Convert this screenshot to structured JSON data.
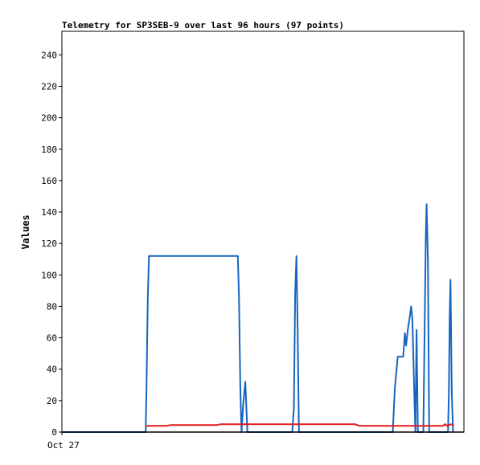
{
  "chart_data": {
    "type": "line",
    "title": "Telemetry for SP3SEB-9 over last 96 hours (97 points)",
    "ylabel": "Values",
    "xlabel": "",
    "ylim": [
      0,
      255
    ],
    "y_ticks": [
      0,
      20,
      40,
      60,
      80,
      100,
      120,
      140,
      160,
      180,
      200,
      220,
      240
    ],
    "x_range_hours": [
      0,
      96
    ],
    "x_tick_labels": [
      {
        "hour": 0,
        "label": "Oct 27"
      }
    ],
    "grid": false,
    "legend": "none",
    "series": [
      {
        "color": "#1565c0",
        "points": [
          [
            0,
            0
          ],
          [
            20,
            0
          ],
          [
            20.2,
            28
          ],
          [
            20.5,
            85
          ],
          [
            20.8,
            112
          ],
          [
            42,
            112
          ],
          [
            42.3,
            85
          ],
          [
            42.6,
            28
          ],
          [
            42.9,
            0
          ],
          [
            43.3,
            18
          ],
          [
            43.8,
            32
          ],
          [
            44.3,
            0
          ],
          [
            55,
            0
          ],
          [
            55.4,
            15
          ],
          [
            55.7,
            88
          ],
          [
            56,
            112
          ],
          [
            56.3,
            65
          ],
          [
            56.6,
            0
          ],
          [
            79,
            0
          ],
          [
            79.5,
            28
          ],
          [
            80.2,
            48
          ],
          [
            81.5,
            48
          ],
          [
            81.9,
            63
          ],
          [
            82.2,
            55
          ],
          [
            82.6,
            65
          ],
          [
            83,
            72
          ],
          [
            83.4,
            80
          ],
          [
            83.7,
            72
          ],
          [
            84.1,
            30
          ],
          [
            84.4,
            0
          ],
          [
            84.7,
            65
          ],
          [
            85,
            0
          ],
          [
            86.3,
            0
          ],
          [
            86.6,
            60
          ],
          [
            86.9,
            125
          ],
          [
            87.1,
            145
          ],
          [
            87.4,
            110
          ],
          [
            87.7,
            0
          ],
          [
            92.2,
            0
          ],
          [
            92.4,
            25
          ],
          [
            92.6,
            73
          ],
          [
            92.8,
            97
          ],
          [
            93.1,
            25
          ],
          [
            93.4,
            0
          ]
        ]
      },
      {
        "color": "#e41a1c",
        "points": [
          [
            20,
            4
          ],
          [
            25,
            4
          ],
          [
            26,
            4.5
          ],
          [
            37,
            4.5
          ],
          [
            38,
            5
          ],
          [
            70,
            5
          ],
          [
            71,
            4
          ],
          [
            91,
            4
          ],
          [
            91.5,
            5
          ],
          [
            92,
            4
          ],
          [
            93,
            5
          ],
          [
            93.6,
            4
          ]
        ]
      },
      {
        "color": "#000000",
        "points": [
          [
            0,
            0
          ],
          [
            96,
            0
          ]
        ]
      }
    ]
  }
}
